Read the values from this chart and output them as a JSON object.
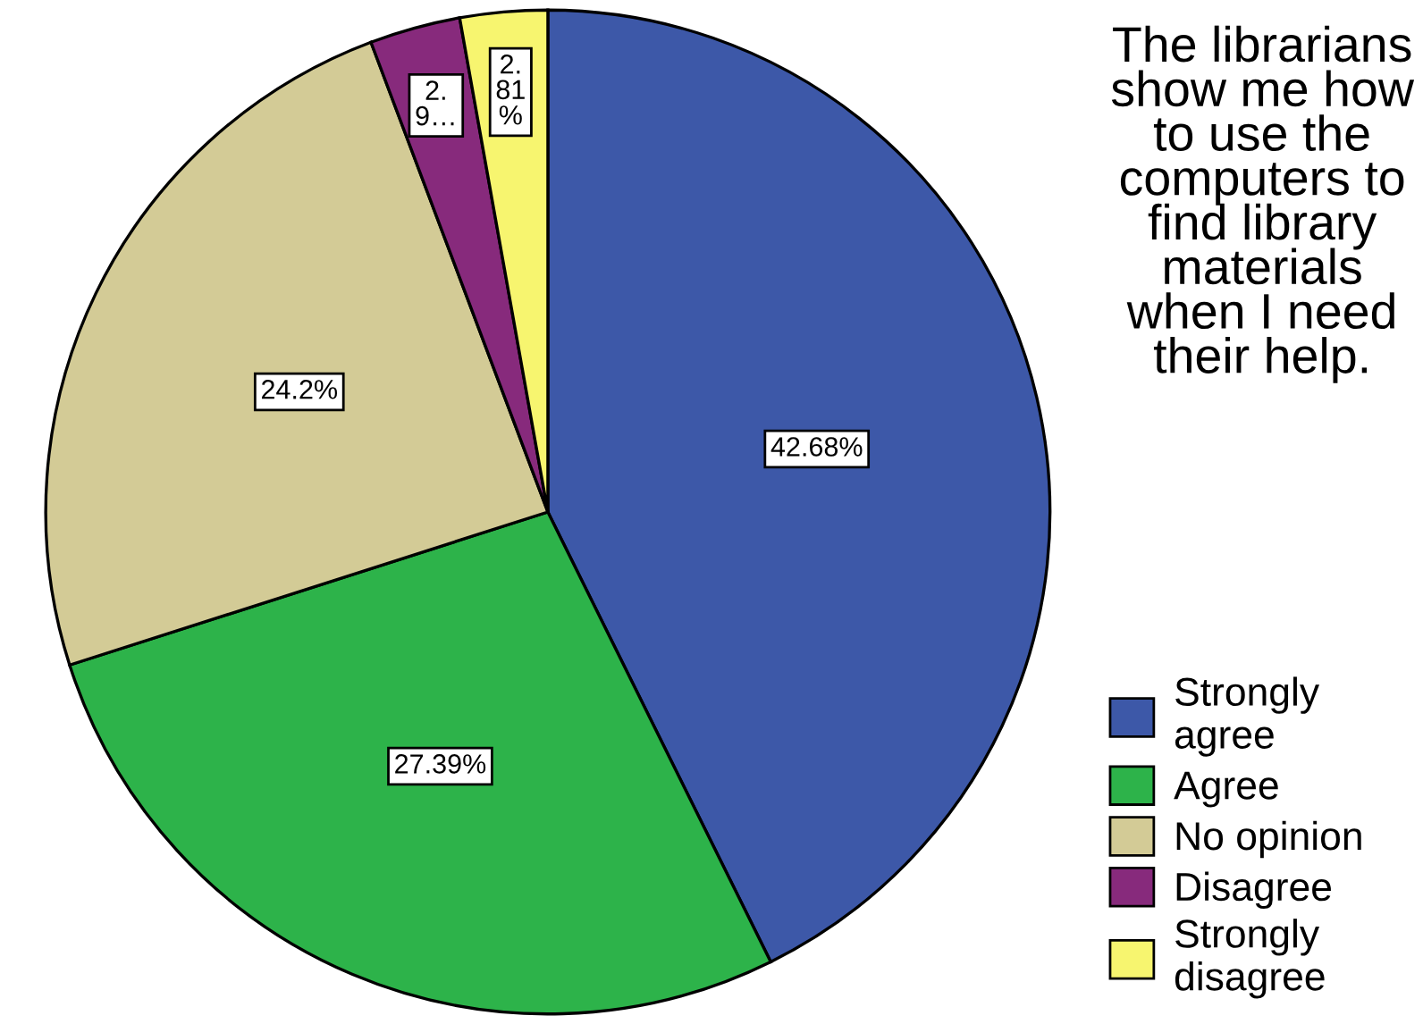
{
  "chart_data": {
    "type": "pie",
    "title": "The librarians show me how to use the computers to find library materials when I need their help.",
    "categories": [
      "Strongly agree",
      "Agree",
      "No opinion",
      "Disagree",
      "Strongly disagree"
    ],
    "values": [
      42.68,
      27.39,
      24.2,
      2.92,
      2.81
    ],
    "colors": [
      "#3d58a8",
      "#2db34a",
      "#d3cb96",
      "#872a7c",
      "#f7f56f"
    ],
    "value_labels": [
      "42.68%",
      "27.39%",
      "24.2%",
      "2.9…",
      "2.81%"
    ],
    "legend": "bottom right"
  }
}
